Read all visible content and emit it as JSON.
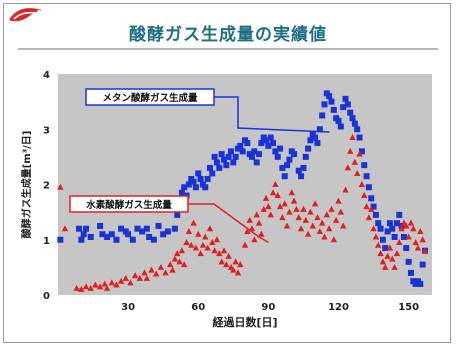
{
  "page": {
    "title": "酸酵ガス生成量の実績値"
  },
  "colors": {
    "plot_bg": "#c6c6c6",
    "methane": "#1a33d6",
    "hydrogen": "#e02020",
    "title": "#1e6f83",
    "logo": "#d62828"
  },
  "chart_data": {
    "type": "scatter",
    "xlabel": "経過日数[日]",
    "ylabel": "酸酵ガス生成量[m³/日]",
    "xlim": [
      0,
      160
    ],
    "ylim": [
      0,
      4
    ],
    "xticks": [
      "30",
      "60",
      "90",
      "120",
      "150"
    ],
    "yticks": [
      "0",
      "1",
      "2",
      "3",
      "4"
    ],
    "grid": false,
    "series": [
      {
        "name": "メタン酸酵ガス生成量",
        "marker": "square",
        "color": "#1a33d6",
        "points": [
          [
            1,
            1.0
          ],
          [
            9,
            1.2
          ],
          [
            10,
            1.0
          ],
          [
            11,
            1.1
          ],
          [
            12,
            1.2
          ],
          [
            14,
            1.05
          ],
          [
            18,
            1.25
          ],
          [
            19,
            1.1
          ],
          [
            21,
            1.05
          ],
          [
            23,
            1.1
          ],
          [
            25,
            1.0
          ],
          [
            27,
            1.2
          ],
          [
            29,
            1.15
          ],
          [
            30,
            1.1
          ],
          [
            32,
            1.0
          ],
          [
            34,
            1.2
          ],
          [
            36,
            1.15
          ],
          [
            38,
            1.2
          ],
          [
            39,
            1.05
          ],
          [
            41,
            1.0
          ],
          [
            43,
            1.25
          ],
          [
            45,
            1.1
          ],
          [
            47,
            1.15
          ],
          [
            50,
            1.2
          ],
          [
            51,
            1.45
          ],
          [
            52,
            1.55
          ],
          [
            53,
            1.85
          ],
          [
            54,
            1.95
          ],
          [
            55,
            1.8
          ],
          [
            56,
            2.0
          ],
          [
            57,
            2.1
          ],
          [
            58,
            2.05
          ],
          [
            59,
            1.95
          ],
          [
            60,
            2.2
          ],
          [
            61,
            2.1
          ],
          [
            62,
            2.0
          ],
          [
            63,
            1.95
          ],
          [
            64,
            2.1
          ],
          [
            65,
            2.3
          ],
          [
            66,
            2.2
          ],
          [
            67,
            2.5
          ],
          [
            68,
            2.4
          ],
          [
            69,
            2.3
          ],
          [
            70,
            2.55
          ],
          [
            71,
            2.45
          ],
          [
            72,
            2.35
          ],
          [
            73,
            2.5
          ],
          [
            74,
            2.6
          ],
          [
            75,
            2.4
          ],
          [
            76,
            2.5
          ],
          [
            77,
            2.65
          ],
          [
            78,
            2.7
          ],
          [
            79,
            2.6
          ],
          [
            80,
            2.8
          ],
          [
            81,
            2.75
          ],
          [
            82,
            2.55
          ],
          [
            83,
            2.5
          ],
          [
            84,
            2.6
          ],
          [
            85,
            2.4
          ],
          [
            86,
            2.55
          ],
          [
            87,
            2.75
          ],
          [
            88,
            2.85
          ],
          [
            89,
            2.8
          ],
          [
            90,
            2.7
          ],
          [
            91,
            2.85
          ],
          [
            92,
            2.75
          ],
          [
            93,
            2.6
          ],
          [
            94,
            2.5
          ],
          [
            95,
            2.65
          ],
          [
            96,
            2.3
          ],
          [
            97,
            2.15
          ],
          [
            98,
            2.35
          ],
          [
            99,
            2.45
          ],
          [
            100,
            2.6
          ],
          [
            101,
            2.55
          ],
          [
            103,
            2.25
          ],
          [
            104,
            2.15
          ],
          [
            105,
            2.3
          ],
          [
            106,
            2.5
          ],
          [
            107,
            2.65
          ],
          [
            108,
            2.8
          ],
          [
            109,
            2.9
          ],
          [
            110,
            2.85
          ],
          [
            111,
            2.75
          ],
          [
            112,
            3.0
          ],
          [
            113,
            3.25
          ],
          [
            114,
            3.45
          ],
          [
            115,
            3.65
          ],
          [
            116,
            3.6
          ],
          [
            117,
            3.5
          ],
          [
            118,
            3.35
          ],
          [
            119,
            3.2
          ],
          [
            120,
            3.15
          ],
          [
            121,
            3.05
          ],
          [
            122,
            3.4
          ],
          [
            123,
            3.55
          ],
          [
            124,
            3.45
          ],
          [
            125,
            3.3
          ],
          [
            126,
            3.2
          ],
          [
            127,
            3.1
          ],
          [
            128,
            3.0
          ],
          [
            129,
            2.85
          ],
          [
            130,
            2.6
          ],
          [
            131,
            2.35
          ],
          [
            132,
            2.15
          ],
          [
            133,
            1.95
          ],
          [
            134,
            1.75
          ],
          [
            135,
            1.6
          ],
          [
            136,
            1.45
          ],
          [
            137,
            1.3
          ],
          [
            138,
            1.2
          ],
          [
            139,
            1.0
          ],
          [
            140,
            0.85
          ],
          [
            141,
            1.15
          ],
          [
            142,
            1.3
          ],
          [
            143,
            1.2
          ],
          [
            144,
            1.05
          ],
          [
            145,
            1.3
          ],
          [
            146,
            1.45
          ],
          [
            147,
            1.25
          ],
          [
            148,
            1.05
          ],
          [
            149,
            0.85
          ],
          [
            150,
            0.6
          ],
          [
            151,
            0.4
          ],
          [
            152,
            0.25
          ],
          [
            153,
            0.2
          ],
          [
            154,
            0.25
          ],
          [
            155,
            0.2
          ],
          [
            156,
            0.55
          ],
          [
            157,
            0.8
          ]
        ]
      },
      {
        "name": "水素酸酵ガス生成量",
        "marker": "triangle",
        "color": "#e02020",
        "points": [
          [
            1,
            1.95
          ],
          [
            3,
            1.2
          ],
          [
            8,
            0.12
          ],
          [
            10,
            0.1
          ],
          [
            12,
            0.15
          ],
          [
            14,
            0.12
          ],
          [
            16,
            0.18
          ],
          [
            18,
            0.15
          ],
          [
            20,
            0.2
          ],
          [
            21,
            0.12
          ],
          [
            23,
            0.22
          ],
          [
            25,
            0.18
          ],
          [
            27,
            0.25
          ],
          [
            29,
            0.3
          ],
          [
            31,
            0.22
          ],
          [
            33,
            0.35
          ],
          [
            35,
            0.3
          ],
          [
            37,
            0.4
          ],
          [
            38,
            0.3
          ],
          [
            40,
            0.45
          ],
          [
            42,
            0.38
          ],
          [
            44,
            0.5
          ],
          [
            46,
            0.4
          ],
          [
            48,
            0.55
          ],
          [
            49,
            0.45
          ],
          [
            50,
            0.65
          ],
          [
            51,
            0.75
          ],
          [
            52,
            0.6
          ],
          [
            53,
            0.8
          ],
          [
            54,
            0.55
          ],
          [
            55,
            0.95
          ],
          [
            56,
            1.15
          ],
          [
            57,
            0.9
          ],
          [
            58,
            1.3
          ],
          [
            59,
            0.85
          ],
          [
            60,
            1.1
          ],
          [
            61,
            0.75
          ],
          [
            62,
            0.9
          ],
          [
            63,
            1.05
          ],
          [
            64,
            0.85
          ],
          [
            65,
            1.2
          ],
          [
            66,
            0.95
          ],
          [
            67,
            0.8
          ],
          [
            68,
            1.0
          ],
          [
            69,
            0.75
          ],
          [
            70,
            0.6
          ],
          [
            71,
            0.8
          ],
          [
            72,
            0.55
          ],
          [
            73,
            0.7
          ],
          [
            74,
            0.5
          ],
          [
            75,
            0.45
          ],
          [
            76,
            0.6
          ],
          [
            77,
            0.4
          ],
          [
            78,
            0.55
          ],
          [
            80,
            0.9
          ],
          [
            81,
            1.15
          ],
          [
            82,
            1.35
          ],
          [
            83,
            1.2
          ],
          [
            84,
            1.0
          ],
          [
            85,
            1.45
          ],
          [
            86,
            1.3
          ],
          [
            87,
            1.1
          ],
          [
            88,
            1.55
          ],
          [
            89,
            1.75
          ],
          [
            90,
            1.6
          ],
          [
            91,
            1.45
          ],
          [
            92,
            1.85
          ],
          [
            93,
            2.0
          ],
          [
            94,
            1.8
          ],
          [
            95,
            1.6
          ],
          [
            96,
            1.4
          ],
          [
            97,
            1.65
          ],
          [
            98,
            1.25
          ],
          [
            99,
            1.5
          ],
          [
            100,
            1.85
          ],
          [
            101,
            1.7
          ],
          [
            102,
            1.55
          ],
          [
            103,
            1.4
          ],
          [
            104,
            1.2
          ],
          [
            105,
            1.55
          ],
          [
            106,
            1.35
          ],
          [
            107,
            1.1
          ],
          [
            108,
            1.5
          ],
          [
            109,
            1.25
          ],
          [
            110,
            1.65
          ],
          [
            111,
            1.4
          ],
          [
            112,
            1.15
          ],
          [
            113,
            1.3
          ],
          [
            114,
            1.05
          ],
          [
            115,
            1.45
          ],
          [
            116,
            1.2
          ],
          [
            117,
            1.55
          ],
          [
            118,
            1.0
          ],
          [
            119,
            1.35
          ],
          [
            120,
            1.7
          ],
          [
            121,
            1.5
          ],
          [
            122,
            1.25
          ],
          [
            123,
            1.9
          ],
          [
            124,
            2.3
          ],
          [
            125,
            2.6
          ],
          [
            126,
            2.85
          ],
          [
            127,
            2.4
          ],
          [
            128,
            2.2
          ],
          [
            129,
            2.55
          ],
          [
            130,
            2.0
          ],
          [
            131,
            1.8
          ],
          [
            132,
            1.6
          ],
          [
            133,
            1.4
          ],
          [
            134,
            1.55
          ],
          [
            135,
            1.2
          ],
          [
            136,
            1.05
          ],
          [
            137,
            0.9
          ],
          [
            138,
            0.75
          ],
          [
            139,
            0.6
          ],
          [
            140,
            0.5
          ],
          [
            141,
            0.7
          ],
          [
            142,
            0.85
          ],
          [
            143,
            0.65
          ],
          [
            144,
            0.5
          ],
          [
            145,
            0.75
          ],
          [
            146,
            0.95
          ],
          [
            147,
            1.2
          ],
          [
            148,
            1.3
          ],
          [
            149,
            1.25
          ],
          [
            150,
            1.05
          ],
          [
            151,
            1.3
          ],
          [
            152,
            1.2
          ],
          [
            153,
            0.95
          ],
          [
            154,
            0.85
          ],
          [
            155,
            1.15
          ],
          [
            156,
            1.0
          ],
          [
            157,
            0.8
          ]
        ]
      }
    ],
    "annotations": [
      {
        "text": "メタン酸酵ガス生成量",
        "series": 0,
        "arrow_to": [
          117,
          2.95
        ]
      },
      {
        "text": "水素酸酵ガス生成量",
        "series": 1,
        "arrow_to": [
          90,
          0.95
        ]
      }
    ]
  }
}
